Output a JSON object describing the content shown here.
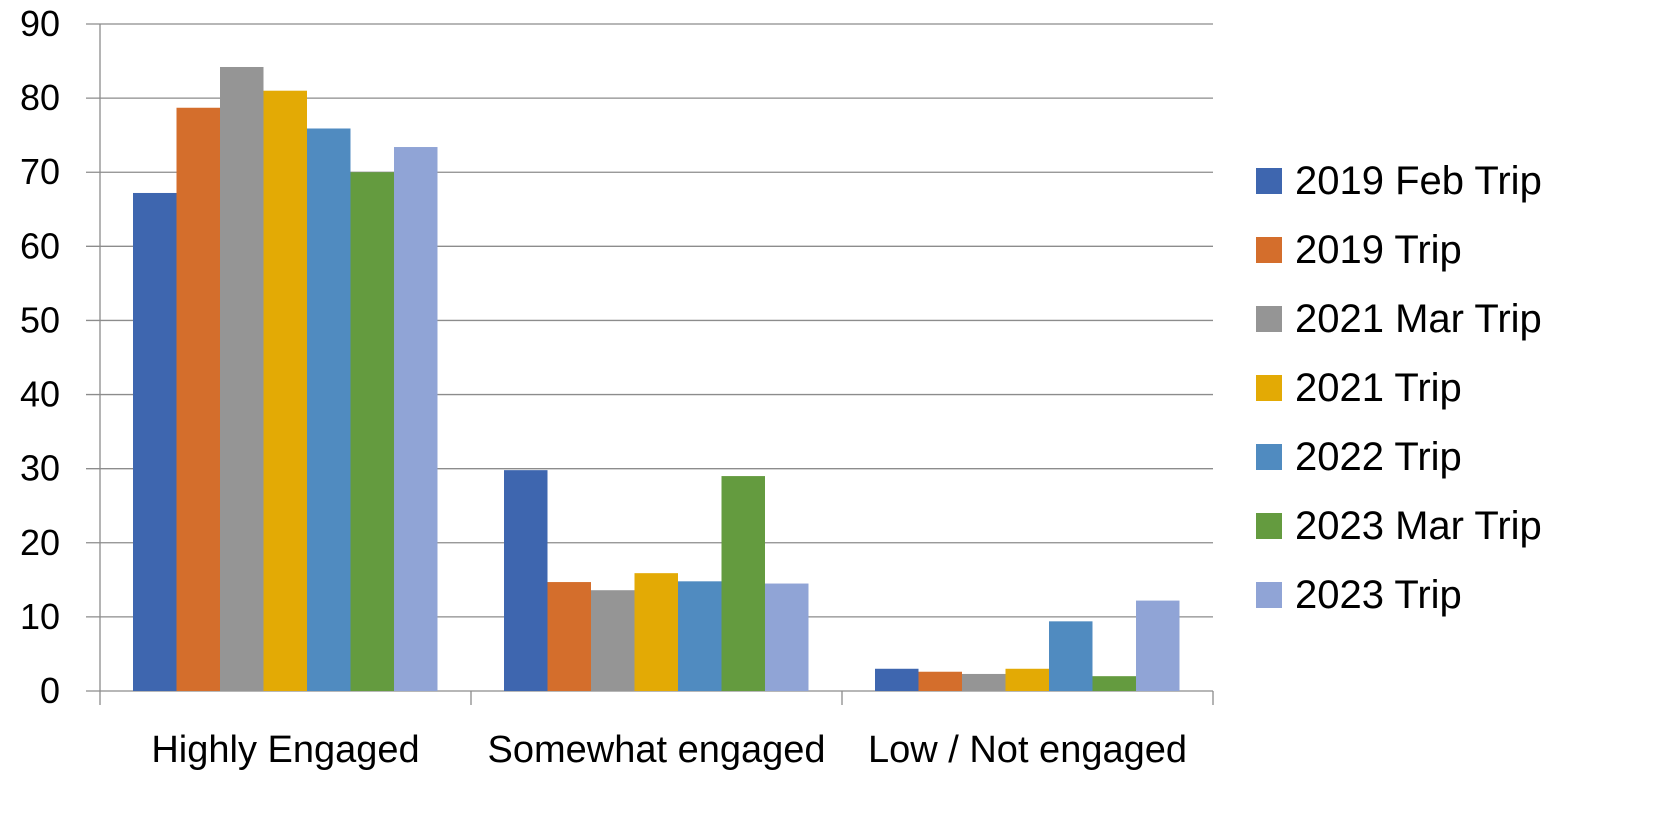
{
  "chart_data": {
    "type": "bar",
    "title": "",
    "xlabel": "",
    "ylabel": "",
    "ylim": [
      0,
      90
    ],
    "y_ticks": [
      0,
      10,
      20,
      30,
      40,
      50,
      60,
      70,
      80,
      90
    ],
    "grid": true,
    "legend_position": "right",
    "categories": [
      "Highly Engaged",
      "Somewhat engaged",
      "Low / Not engaged"
    ],
    "series": [
      {
        "name": "2019 Feb Trip",
        "color": "#3E66AF",
        "values": [
          67.2,
          29.8,
          3.0
        ]
      },
      {
        "name": "2019 Trip",
        "color": "#D46E2C",
        "values": [
          78.7,
          14.7,
          2.6
        ]
      },
      {
        "name": "2021 Mar Trip",
        "color": "#959595",
        "values": [
          84.2,
          13.6,
          2.3
        ]
      },
      {
        "name": "2021 Trip",
        "color": "#E3AA05",
        "values": [
          81.0,
          15.9,
          3.0
        ]
      },
      {
        "name": "2022 Trip",
        "color": "#508BC0",
        "values": [
          75.9,
          14.8,
          9.4
        ]
      },
      {
        "name": "2023 Mar Trip",
        "color": "#649B3F",
        "values": [
          70.0,
          29.0,
          2.0
        ]
      },
      {
        "name": "2023 Trip",
        "color": "#90A4D6",
        "values": [
          73.4,
          14.5,
          12.2
        ]
      }
    ]
  }
}
